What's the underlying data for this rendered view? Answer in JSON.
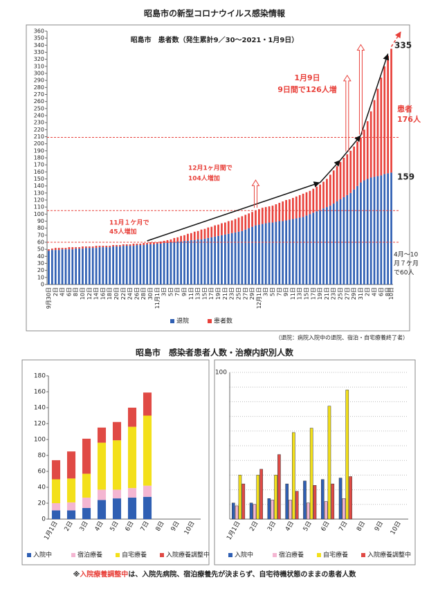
{
  "page": {
    "title": "昭島市の新型コロナウイルス感染情報",
    "subtitle": "昭島市　感染者患者人数・治療内訳別人数",
    "note": "（退院：病院入院中の退院、宿泊・自宅療養終了者）",
    "footnote": {
      "mark": "※",
      "highlight": "入院療養調整中",
      "rest": "は、入院先病院、宿泊療養先が決まらず、自宅待機状態のままの患者人数"
    }
  },
  "chart_data": [
    {
      "type": "stacked_bar",
      "title": "昭島市　患者数（発生累計9／30～2021・1月9日）",
      "categories": [
        "9月30日",
        null,
        "2日",
        null,
        "4日",
        null,
        "6日",
        null,
        "8日",
        null,
        "10日",
        null,
        "12日",
        null,
        "14日",
        null,
        "16日",
        null,
        "18日",
        null,
        "20日",
        null,
        "22日",
        null,
        "24日",
        null,
        "26日",
        null,
        "28日",
        null,
        "30日",
        null,
        "11月1日",
        null,
        "3日",
        null,
        "5日",
        null,
        "7日",
        null,
        "9日",
        null,
        "11日",
        null,
        "13日",
        null,
        "15日",
        null,
        "17日",
        null,
        "19日",
        null,
        "21日",
        null,
        "23日",
        null,
        "25日",
        null,
        "27日",
        null,
        "29日",
        null,
        "12月1日",
        null,
        "3日",
        null,
        "5日",
        null,
        "7日",
        null,
        "9日",
        null,
        "11日",
        null,
        "13日",
        null,
        "15日",
        null,
        "17日",
        null,
        "19日",
        null,
        "21日",
        null,
        "23日",
        null,
        "25日",
        null,
        "27日",
        null,
        "29日",
        null,
        "31日",
        null,
        "2日",
        null,
        "4日",
        null,
        "6日",
        null,
        "8日",
        "10日"
      ],
      "series": [
        {
          "name": "退院",
          "color": "#2f5fb3",
          "values": [
            48,
            49,
            49,
            49,
            50,
            50,
            50,
            50,
            51,
            51,
            51,
            52,
            52,
            52,
            52,
            53,
            53,
            53,
            53,
            54,
            54,
            54,
            55,
            55,
            55,
            55,
            56,
            56,
            56,
            57,
            57,
            57,
            58,
            58,
            59,
            59,
            60,
            60,
            61,
            61,
            62,
            62,
            63,
            63,
            64,
            64,
            65,
            66,
            67,
            68,
            69,
            70,
            71,
            72,
            73,
            74,
            75,
            76,
            78,
            80,
            82,
            84,
            85,
            86,
            87,
            88,
            88,
            89,
            90,
            90,
            91,
            92,
            93,
            94,
            95,
            96,
            98,
            100,
            102,
            104,
            106,
            108,
            110,
            112,
            115,
            118,
            121,
            124,
            127,
            130,
            135,
            140,
            145,
            148,
            150,
            152,
            153,
            154,
            155,
            157,
            158,
            159
          ]
        },
        {
          "name": "患者数",
          "color": "#e8403a",
          "values": [
            2,
            2,
            3,
            3,
            2,
            2,
            3,
            3,
            2,
            2,
            3,
            2,
            2,
            2,
            3,
            2,
            2,
            2,
            2,
            2,
            2,
            2,
            2,
            2,
            2,
            3,
            2,
            2,
            3,
            2,
            3,
            3,
            2,
            3,
            3,
            4,
            4,
            6,
            6,
            8,
            8,
            10,
            10,
            12,
            12,
            14,
            14,
            15,
            15,
            16,
            16,
            17,
            17,
            18,
            18,
            19,
            20,
            21,
            21,
            21,
            21,
            21,
            22,
            23,
            23,
            23,
            24,
            25,
            26,
            28,
            29,
            29,
            30,
            31,
            32,
            33,
            33,
            33,
            34,
            35,
            36,
            38,
            40,
            44,
            47,
            50,
            53,
            56,
            58,
            60,
            61,
            63,
            64,
            72,
            82,
            94,
            109,
            124,
            139,
            153,
            167,
            176
          ]
        }
      ],
      "ylim": [
        0,
        360
      ],
      "yticks": [
        0,
        10,
        20,
        30,
        40,
        50,
        60,
        70,
        80,
        90,
        100,
        110,
        120,
        130,
        140,
        150,
        160,
        170,
        180,
        190,
        200,
        210,
        220,
        230,
        240,
        250,
        260,
        270,
        280,
        290,
        300,
        310,
        320,
        330,
        340,
        350,
        360
      ],
      "reference_lines": [
        60,
        105,
        209
      ],
      "annotations": {
        "nov1": "11月１ケ月で",
        "nov2": "45人増加",
        "dec1": "12月1ヶ月間で",
        "dec2": "104人増加",
        "jan1": "1月9日",
        "jan2": "9日間で126人増",
        "top": "335",
        "mid": "159",
        "pat1": "患者",
        "pat2": "176人",
        "early1": "4月～10",
        "early2": "月７ケ月",
        "early3": "で60人"
      }
    },
    {
      "type": "stacked_bar",
      "categories": [
        "1月1日",
        "2日",
        "3日",
        "4日",
        "5日",
        "6日",
        "7日",
        "8日",
        "9日",
        "10日"
      ],
      "series": [
        {
          "name": "入院中",
          "color": "#2f5fb3",
          "values": [
            11,
            11,
            14,
            24,
            26,
            27,
            28,
            null,
            null,
            null
          ]
        },
        {
          "name": "宿泊療養",
          "color": "#f4b6d2",
          "values": [
            9,
            10,
            13,
            13,
            11,
            12,
            14,
            null,
            null,
            null
          ]
        },
        {
          "name": "自宅療養",
          "color": "#f3e01a",
          "values": [
            30,
            30,
            30,
            59,
            62,
            77,
            88,
            null,
            null,
            null
          ]
        },
        {
          "name": "入院療養調整中",
          "color": "#e04a45",
          "values": [
            24,
            34,
            44,
            19,
            23,
            24,
            29,
            null,
            null,
            null
          ]
        }
      ],
      "ylim": [
        0,
        180
      ],
      "yticks": [
        0,
        20,
        40,
        60,
        80,
        100,
        120,
        140,
        160,
        180
      ]
    },
    {
      "type": "grouped_bar",
      "categories": [
        "1月1日",
        "2日",
        "3日",
        "4日",
        "5日",
        "6日",
        "7日",
        "8日",
        "9日",
        "10日"
      ],
      "series": [
        {
          "name": "入院中",
          "color": "#2f5fb3",
          "values": [
            11,
            11,
            14,
            24,
            26,
            27,
            28,
            null,
            null,
            null
          ]
        },
        {
          "name": "宿泊療養",
          "color": "#f4b6d2",
          "values": [
            9,
            10,
            13,
            13,
            11,
            12,
            14,
            null,
            null,
            null
          ]
        },
        {
          "name": "自宅療養",
          "color": "#f3e01a",
          "values": [
            30,
            30,
            30,
            59,
            62,
            77,
            88,
            null,
            null,
            null
          ]
        },
        {
          "name": "入院療養調整中",
          "color": "#e04a45",
          "values": [
            24,
            34,
            44,
            19,
            23,
            24,
            29,
            null,
            null,
            null
          ]
        }
      ],
      "ylim": [
        0,
        100
      ],
      "yticks": [
        100
      ],
      "grid_lines": [
        10,
        20,
        30,
        40,
        50,
        60,
        70,
        80,
        90
      ]
    }
  ]
}
